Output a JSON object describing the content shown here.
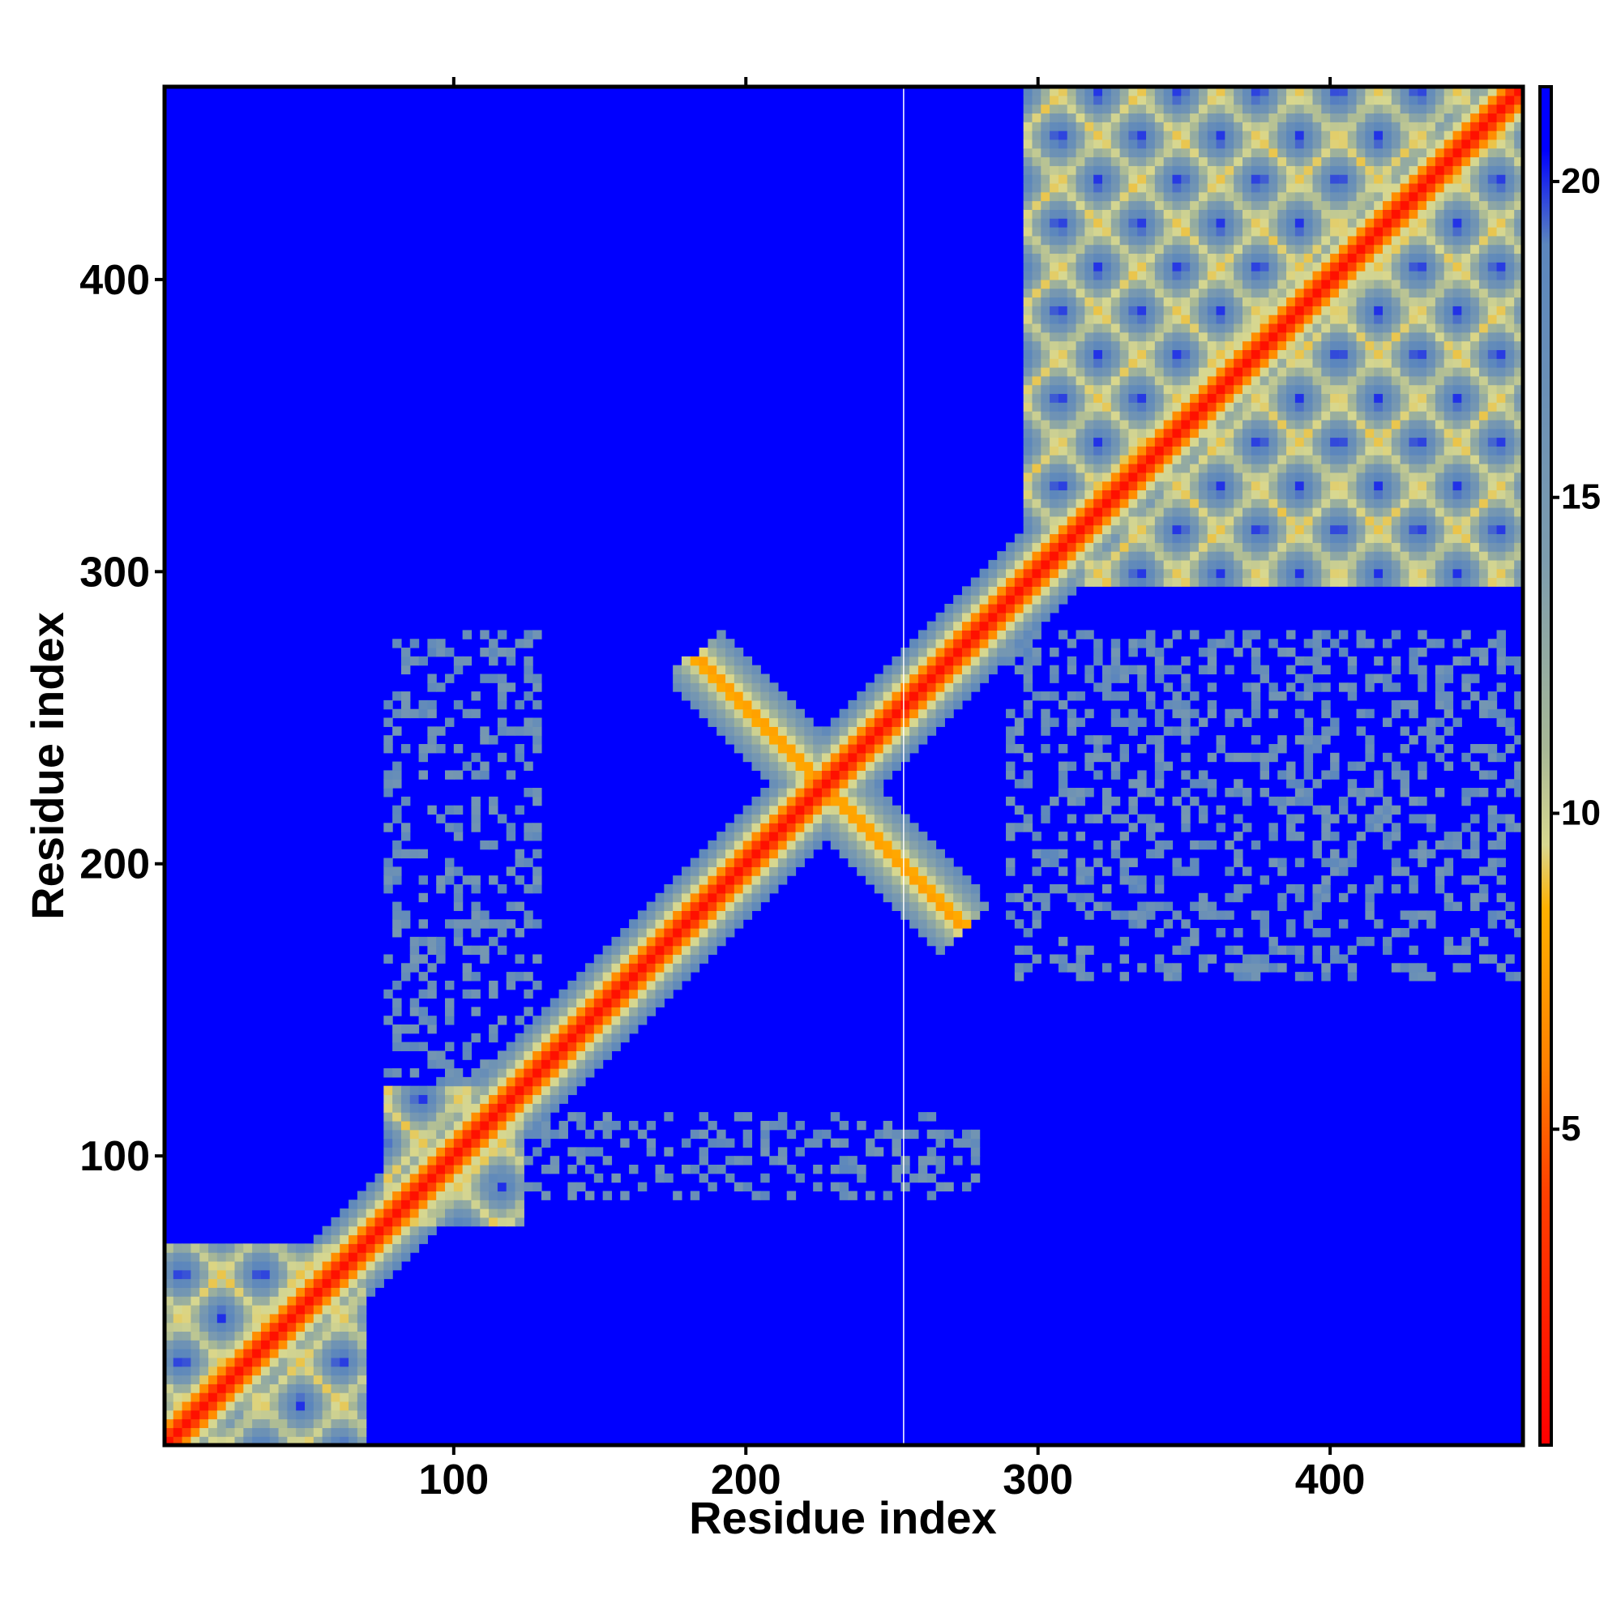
{
  "chart_data": {
    "type": "heatmap",
    "title": "",
    "xlabel": "Residue index",
    "ylabel": "Residue index",
    "xlim": [
      1,
      466
    ],
    "ylim": [
      1,
      466
    ],
    "x_ticks": [
      100,
      200,
      300,
      400
    ],
    "y_ticks": [
      100,
      200,
      300,
      400
    ],
    "x_tick_labels": [
      "100",
      "200",
      "300",
      "400"
    ],
    "y_tick_labels": [
      "100",
      "200",
      "300",
      "400"
    ],
    "colorbar": {
      "range": [
        0,
        21.5
      ],
      "ticks": [
        5,
        10,
        15,
        20
      ],
      "tick_labels": [
        "5",
        "10",
        "15",
        "20"
      ],
      "stops": [
        {
          "value": 0,
          "color": "#ff0000"
        },
        {
          "value": 4,
          "color": "#ff4000"
        },
        {
          "value": 6,
          "color": "#ff8000"
        },
        {
          "value": 8.5,
          "color": "#ffb000"
        },
        {
          "value": 9.5,
          "color": "#d8d890"
        },
        {
          "value": 11,
          "color": "#a8b896"
        },
        {
          "value": 14,
          "color": "#7d9cae"
        },
        {
          "value": 19,
          "color": "#5b86bd"
        },
        {
          "value": 20.5,
          "color": "#0000ff"
        },
        {
          "value": 21.5,
          "color": "#0000ff"
        }
      ]
    },
    "background_color": "#0000ff",
    "grid": false,
    "legend": "colorbar-right",
    "vertical_line_x": 254,
    "features": {
      "diagonal": {
        "from": 1,
        "to": 466
      },
      "domain_blocks": [
        {
          "from": 1,
          "to": 70
        },
        {
          "from": 75,
          "to": 125
        },
        {
          "from": 295,
          "to": 466
        }
      ],
      "cross_anti_diagonal": {
        "from": [
          182,
          272
        ],
        "to": [
          275,
          178
        ]
      },
      "contact_bands": [
        {
          "x": [
            100,
            280
          ],
          "y": [
            85,
            115
          ]
        },
        {
          "x": [
            75,
            130
          ],
          "y": [
            115,
            280
          ]
        },
        {
          "x": [
            290,
            466
          ],
          "y": [
            160,
            280
          ]
        }
      ]
    }
  }
}
